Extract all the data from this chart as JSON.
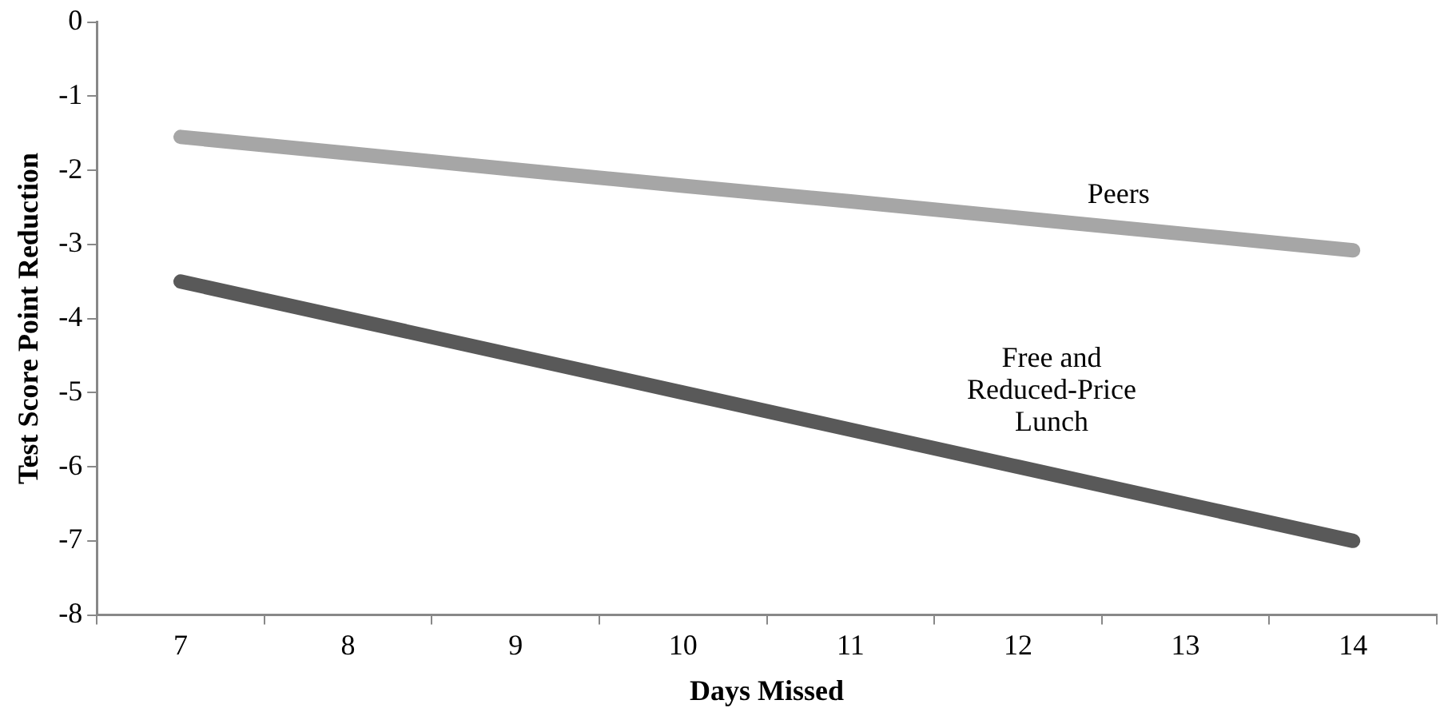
{
  "chart_data": {
    "type": "line",
    "xlabel": "Days Missed",
    "ylabel": "Test Score Point Reduction",
    "categories": [
      "7",
      "8",
      "9",
      "10",
      "11",
      "12",
      "13",
      "14"
    ],
    "series": [
      {
        "name": "Peers",
        "color": "#a6a6a6",
        "values": [
          -1.55,
          -1.77,
          -1.99,
          -2.21,
          -2.42,
          -2.64,
          -2.86,
          -3.08
        ]
      },
      {
        "name": "Free and Reduced-Price Lunch",
        "color": "#595959",
        "values": [
          -3.5,
          -4.0,
          -4.5,
          -5.0,
          -5.5,
          -6.0,
          -6.5,
          -7.0
        ]
      }
    ],
    "ylim": [
      -8,
      0
    ],
    "yticks": [
      0,
      -1,
      -2,
      -3,
      -4,
      -5,
      -6,
      -7,
      -8
    ],
    "grid": false,
    "legend": false,
    "marker": "none",
    "line_style": "solid"
  }
}
